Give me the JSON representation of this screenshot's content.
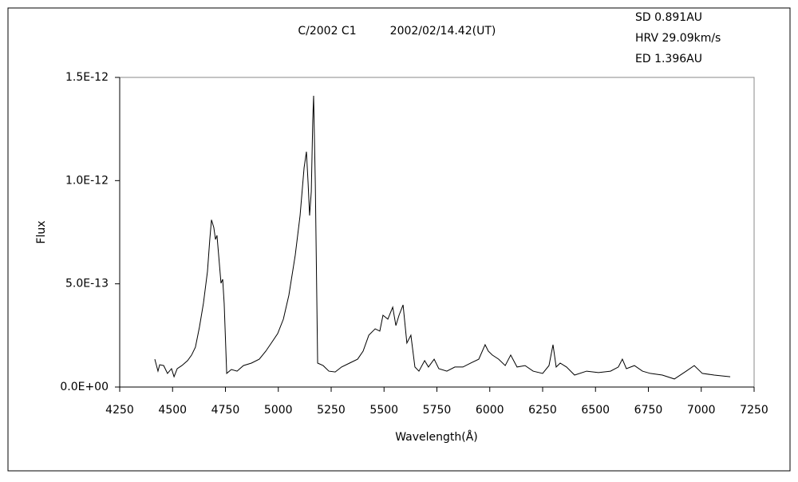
{
  "chart_data": {
    "type": "line",
    "title": "C/2002 C1",
    "subtitle": "2002/02/14.42(UT)",
    "annotations": [
      "SD 0.891AU",
      "HRV 29.09km/s",
      "ED 1.396AU"
    ],
    "x_label": "Wavelength(Å)",
    "y_label": "Flux",
    "xlim": [
      4250,
      7250
    ],
    "xticks": [
      4250,
      4500,
      4750,
      5000,
      5250,
      5500,
      5750,
      6000,
      6250,
      6500,
      6750,
      7000,
      7250
    ],
    "ylim": [
      0,
      1.5e-12
    ],
    "yticks": [
      {
        "value": 0,
        "label": "0.0E+00"
      },
      {
        "value": 5e-13,
        "label": "5.0E-13"
      },
      {
        "value": 1e-12,
        "label": "1.0E-12"
      },
      {
        "value": 1.5e-12,
        "label": "1.5E-12"
      }
    ],
    "grid": false,
    "x": [
      4416,
      4431,
      4439,
      4458,
      4476,
      4495,
      4507,
      4522,
      4544,
      4571,
      4590,
      4608,
      4627,
      4646,
      4665,
      4676,
      4684,
      4695,
      4703,
      4710,
      4718,
      4729,
      4737,
      4744,
      4756,
      4778,
      4805,
      4835,
      4873,
      4910,
      4941,
      4967,
      4997,
      5024,
      5050,
      5080,
      5103,
      5122,
      5133,
      5141,
      5148,
      5156,
      5163,
      5167,
      5175,
      5186,
      5212,
      5239,
      5269,
      5299,
      5337,
      5375,
      5401,
      5428,
      5458,
      5480,
      5495,
      5518,
      5541,
      5556,
      5571,
      5590,
      5608,
      5627,
      5646,
      5665,
      5692,
      5710,
      5737,
      5759,
      5797,
      5835,
      5873,
      5910,
      5948,
      5978,
      5993,
      6012,
      6042,
      6073,
      6099,
      6129,
      6167,
      6205,
      6250,
      6280,
      6299,
      6314,
      6333,
      6363,
      6401,
      6458,
      6514,
      6571,
      6608,
      6627,
      6646,
      6684,
      6722,
      6759,
      6816,
      6873,
      6929,
      6967,
      7005,
      7061,
      7137
    ],
    "series": [
      {
        "color": "#000000",
        "values": [
          1.35e-13,
          7.7e-14,
          1.08e-13,
          1.04e-13,
          6.6e-14,
          8.9e-14,
          5e-14,
          8.9e-14,
          1.04e-13,
          1.28e-13,
          1.55e-13,
          1.93e-13,
          2.9e-13,
          4.06e-13,
          5.6e-13,
          7.15e-13,
          8.1e-13,
          7.73e-13,
          7.15e-13,
          7.35e-13,
          6.38e-13,
          5.03e-13,
          5.22e-13,
          4.06e-13,
          6.6e-14,
          8.5e-14,
          7.7e-14,
          1.04e-13,
          1.16e-13,
          1.35e-13,
          1.74e-13,
          2.13e-13,
          2.59e-13,
          3.29e-13,
          4.45e-13,
          6.38e-13,
          8.31e-13,
          1.063e-12,
          1.14e-12,
          9.86e-13,
          8.31e-13,
          9.47e-13,
          1.295e-12,
          1.411e-12,
          9.86e-13,
          1.16e-13,
          1.04e-13,
          7.7e-14,
          7.3e-14,
          9.7e-14,
          1.16e-13,
          1.35e-13,
          1.74e-13,
          2.51e-13,
          2.82e-13,
          2.71e-13,
          3.48e-13,
          3.29e-13,
          3.87e-13,
          2.98e-13,
          3.48e-13,
          3.98e-13,
          2.13e-13,
          2.51e-13,
          9.7e-14,
          7.7e-14,
          1.28e-13,
          9.7e-14,
          1.35e-13,
          8.9e-14,
          7.7e-14,
          9.7e-14,
          9.7e-14,
          1.16e-13,
          1.35e-13,
          2.05e-13,
          1.74e-13,
          1.55e-13,
          1.35e-13,
          1.04e-13,
          1.55e-13,
          9.7e-14,
          1.04e-13,
          7.7e-14,
          6.6e-14,
          1.04e-13,
          2.05e-13,
          9.7e-14,
          1.16e-13,
          9.7e-14,
          5.8e-14,
          7.7e-14,
          7e-14,
          7.7e-14,
          9.7e-14,
          1.35e-13,
          8.9e-14,
          1.04e-13,
          7.7e-14,
          6.6e-14,
          5.8e-14,
          3.9e-14,
          7.7e-14,
          1.04e-13,
          6.6e-14,
          5.8e-14,
          5e-14
        ]
      }
    ]
  }
}
